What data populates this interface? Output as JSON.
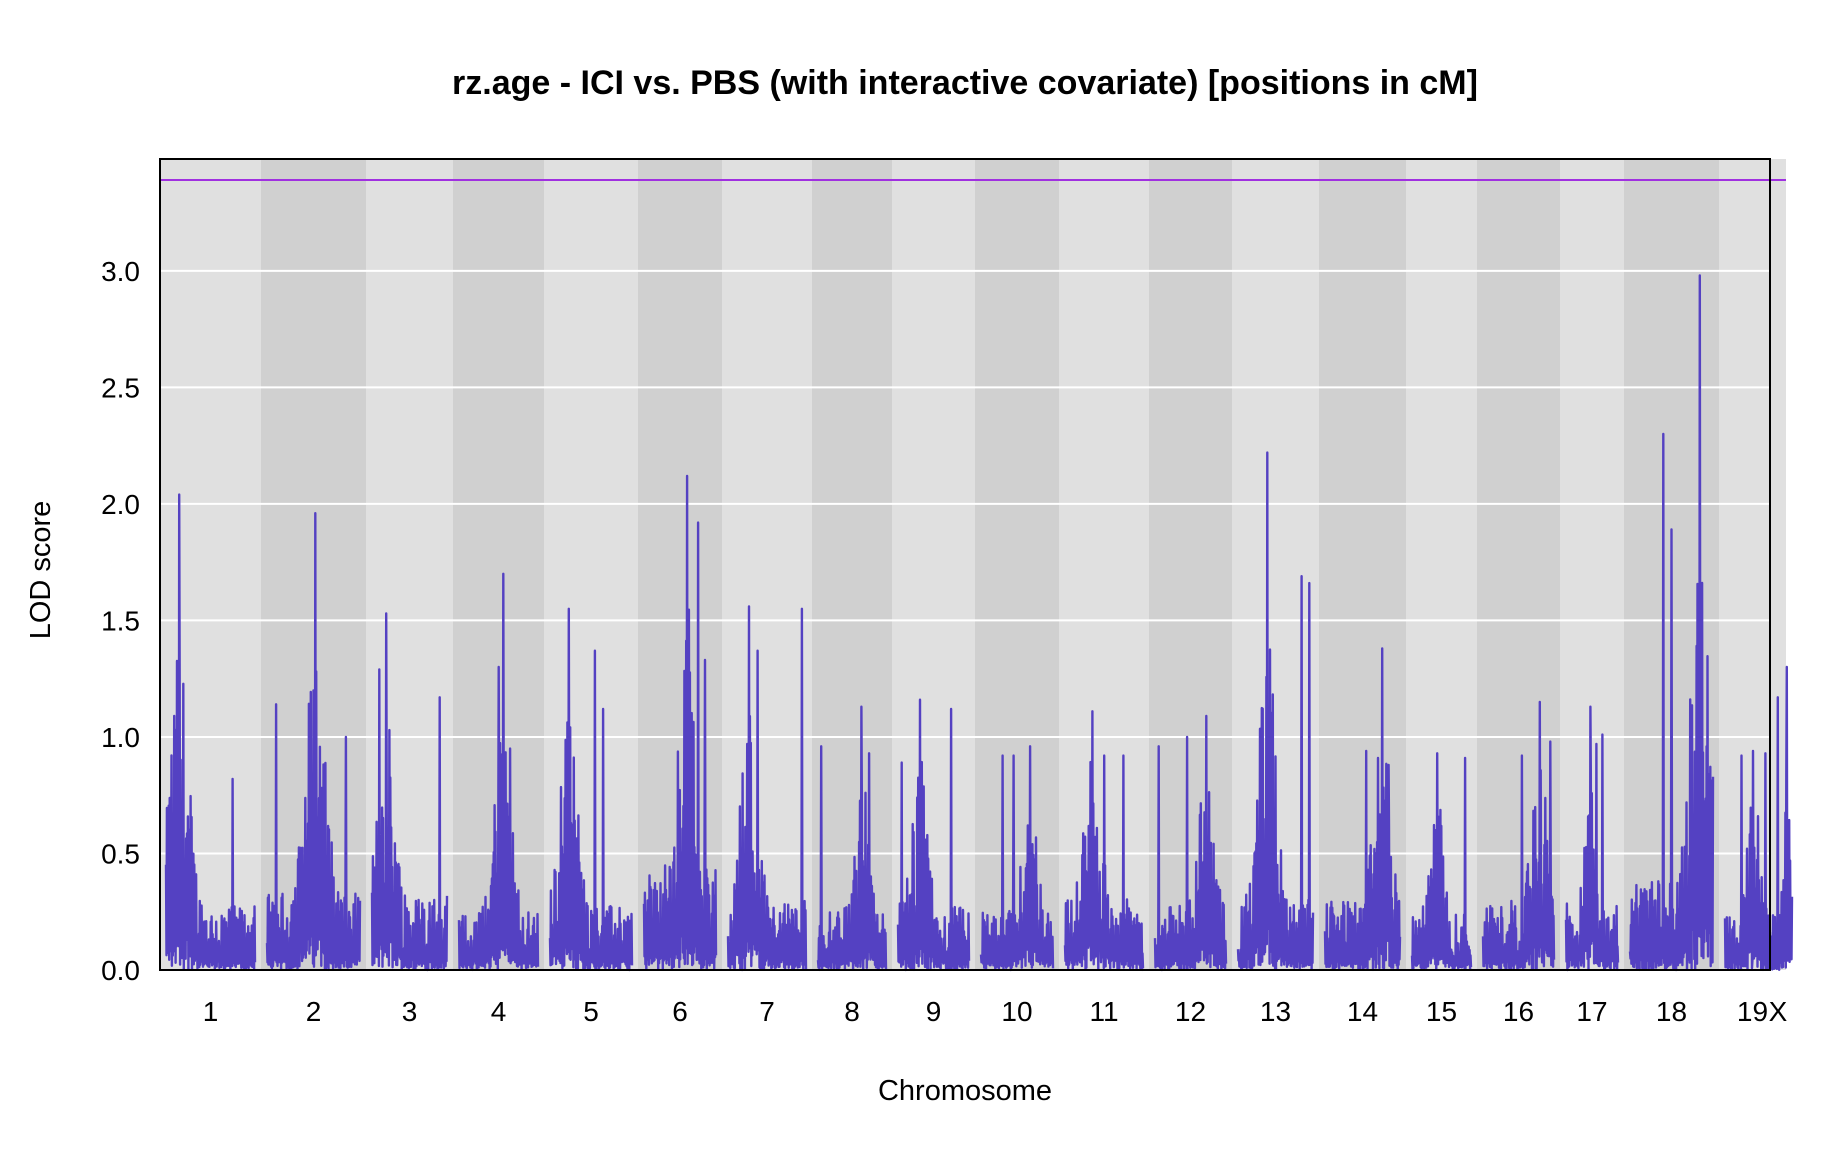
{
  "chart_data": {
    "type": "line",
    "title": "rz.age - ICI vs. PBS (with interactive covariate) [positions in cM]",
    "xlabel": "Chromosome",
    "ylabel": "LOD score",
    "ylim": [
      0,
      3.48
    ],
    "yticks": [
      "0.0",
      "0.5",
      "1.0",
      "1.5",
      "2.0",
      "2.5",
      "3.0"
    ],
    "grid": true,
    "threshold": 3.39,
    "colors": {
      "line": "#5441c2",
      "threshold": "#a030e0",
      "band_light": "#e0e0e0",
      "band_dark": "#d0d0d0",
      "grid": "#ffffff"
    },
    "chromosomes": [
      {
        "label": "1",
        "peak": 2.04,
        "base": 0.5,
        "spikes": [
          [
            0.1,
            1.03
          ],
          [
            0.75,
            0.82
          ]
        ]
      },
      {
        "label": "2",
        "peak": 1.96,
        "base": 0.6,
        "spikes": [
          [
            0.85,
            1.0
          ],
          [
            0.1,
            1.14
          ]
        ]
      },
      {
        "label": "3",
        "peak": 1.53,
        "base": 0.6,
        "spikes": [
          [
            0.1,
            1.29
          ],
          [
            0.9,
            1.17
          ]
        ]
      },
      {
        "label": "4",
        "peak": 1.7,
        "base": 0.45,
        "spikes": [
          [
            0.5,
            1.3
          ],
          [
            0.65,
            0.95
          ]
        ]
      },
      {
        "label": "5",
        "peak": 1.55,
        "base": 0.5,
        "spikes": [
          [
            0.55,
            1.37
          ],
          [
            0.65,
            1.12
          ]
        ]
      },
      {
        "label": "6",
        "peak": 2.12,
        "base": 0.8,
        "spikes": [
          [
            0.75,
            1.92
          ],
          [
            0.85,
            1.33
          ]
        ]
      },
      {
        "label": "7",
        "peak": 1.56,
        "base": 0.55,
        "spikes": [
          [
            0.38,
            1.37
          ],
          [
            0.95,
            1.55
          ]
        ]
      },
      {
        "label": "8",
        "peak": 1.13,
        "base": 0.45,
        "spikes": [
          [
            0.05,
            0.96
          ],
          [
            0.75,
            0.93
          ]
        ]
      },
      {
        "label": "9",
        "peak": 1.16,
        "base": 0.5,
        "spikes": [
          [
            0.75,
            1.12
          ],
          [
            0.05,
            0.89
          ]
        ]
      },
      {
        "label": "10",
        "peak": 0.96,
        "base": 0.45,
        "spikes": [
          [
            0.3,
            0.92
          ],
          [
            0.45,
            0.92
          ]
        ]
      },
      {
        "label": "11",
        "peak": 1.11,
        "base": 0.55,
        "spikes": [
          [
            0.75,
            0.92
          ],
          [
            0.5,
            0.92
          ]
        ]
      },
      {
        "label": "12",
        "peak": 1.09,
        "base": 0.5,
        "spikes": [
          [
            0.45,
            1.0
          ],
          [
            0.05,
            0.96
          ]
        ]
      },
      {
        "label": "13",
        "peak": 2.22,
        "base": 0.55,
        "spikes": [
          [
            0.85,
            1.69
          ],
          [
            0.95,
            1.66
          ]
        ]
      },
      {
        "label": "14",
        "peak": 1.38,
        "base": 0.55,
        "spikes": [
          [
            0.55,
            0.94
          ],
          [
            0.85,
            0.88
          ]
        ]
      },
      {
        "label": "15",
        "peak": 0.93,
        "base": 0.45,
        "spikes": [
          [
            0.9,
            0.91
          ],
          [
            0.4,
            0.6
          ]
        ]
      },
      {
        "label": "16",
        "peak": 1.15,
        "base": 0.55,
        "spikes": [
          [
            0.95,
            0.98
          ],
          [
            0.55,
            0.92
          ]
        ]
      },
      {
        "label": "17",
        "peak": 1.13,
        "base": 0.55,
        "spikes": [
          [
            0.58,
            0.97
          ],
          [
            0.7,
            1.01
          ]
        ]
      },
      {
        "label": "18",
        "peak": 2.98,
        "base": 0.7,
        "spikes": [
          [
            0.4,
            2.3
          ],
          [
            0.5,
            1.89
          ]
        ]
      },
      {
        "label": "19",
        "peak": 0.94,
        "base": 0.45,
        "spikes": [
          [
            0.3,
            0.92
          ],
          [
            0.6,
            0.66
          ]
        ]
      },
      {
        "label": "X",
        "peak": 1.3,
        "base": 0.45,
        "spikes": [
          [
            0.5,
            1.17
          ],
          [
            0.95,
            0.93
          ]
        ]
      }
    ]
  }
}
